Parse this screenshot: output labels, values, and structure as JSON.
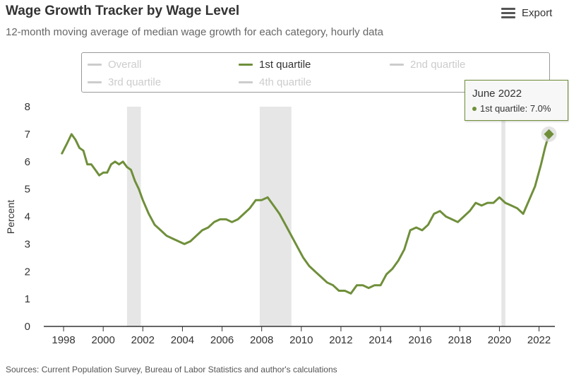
{
  "header": {
    "title": "Wage Growth Tracker by Wage Level",
    "subtitle": "12-month moving average of median wage growth for each category, hourly data"
  },
  "export_button": {
    "label": "Export",
    "icon": "hamburger-menu-icon"
  },
  "legend": {
    "items": [
      {
        "label": "Overall",
        "active": false
      },
      {
        "label": "1st quartile",
        "active": true
      },
      {
        "label": "2nd quartile",
        "active": false
      },
      {
        "label": "3rd quartile",
        "active": false
      },
      {
        "label": "4th quartile",
        "active": false
      }
    ]
  },
  "tooltip": {
    "title": "June 2022",
    "series_label": "1st quartile: 7.0%"
  },
  "source": "Sources: Current Population Survey, Bureau of Labor Statistics and author's calculations",
  "colors": {
    "series": "#6f8f3a",
    "inactive_legend": "#cccccc",
    "recession": "#e6e6e6",
    "axis": "#333333",
    "text": "#333333"
  },
  "chart_data": {
    "type": "line",
    "title": "Wage Growth Tracker by Wage Level",
    "subtitle": "12-month moving average of median wage growth for each category, hourly data",
    "ylabel": "Percent",
    "ylim": [
      0,
      8
    ],
    "yticks": [
      0,
      1,
      2,
      3,
      4,
      5,
      6,
      7,
      8
    ],
    "xlim": [
      1997,
      2022.8
    ],
    "xticks": [
      1998,
      2000,
      2002,
      2004,
      2006,
      2008,
      2010,
      2012,
      2014,
      2016,
      2018,
      2020,
      2022
    ],
    "grid": false,
    "legend_position": "top",
    "recessions": [
      [
        2001.2,
        2001.9
      ],
      [
        2007.9,
        2009.5
      ],
      [
        2020.1,
        2020.3
      ]
    ],
    "series": [
      {
        "name": "1st quartile",
        "x": [
          1997.92,
          1998.2,
          1998.4,
          1998.6,
          1998.8,
          1999.0,
          1999.2,
          1999.4,
          1999.6,
          1999.8,
          2000.0,
          2000.2,
          2000.4,
          2000.6,
          2000.8,
          2001.0,
          2001.2,
          2001.4,
          2001.6,
          2001.8,
          2002.0,
          2002.3,
          2002.6,
          2002.9,
          2003.2,
          2003.5,
          2003.8,
          2004.1,
          2004.4,
          2004.7,
          2005.0,
          2005.3,
          2005.6,
          2005.9,
          2006.2,
          2006.5,
          2006.8,
          2007.1,
          2007.4,
          2007.7,
          2008.0,
          2008.3,
          2008.6,
          2008.9,
          2009.2,
          2009.5,
          2009.8,
          2010.1,
          2010.4,
          2010.7,
          2011.0,
          2011.3,
          2011.6,
          2011.9,
          2012.2,
          2012.5,
          2012.8,
          2013.1,
          2013.4,
          2013.7,
          2014.0,
          2014.3,
          2014.6,
          2014.9,
          2015.2,
          2015.5,
          2015.8,
          2016.1,
          2016.4,
          2016.7,
          2017.0,
          2017.3,
          2017.6,
          2017.9,
          2018.2,
          2018.5,
          2018.8,
          2019.1,
          2019.4,
          2019.7,
          2020.0,
          2020.3,
          2020.6,
          2020.9,
          2021.2,
          2021.5,
          2021.8,
          2022.1,
          2022.3,
          2022.5
        ],
        "values": [
          6.3,
          6.7,
          7.0,
          6.8,
          6.5,
          6.4,
          5.9,
          5.9,
          5.7,
          5.5,
          5.6,
          5.6,
          5.9,
          6.0,
          5.9,
          6.0,
          5.8,
          5.7,
          5.3,
          5.0,
          4.6,
          4.1,
          3.7,
          3.5,
          3.3,
          3.2,
          3.1,
          3.0,
          3.1,
          3.3,
          3.5,
          3.6,
          3.8,
          3.9,
          3.9,
          3.8,
          3.9,
          4.1,
          4.3,
          4.6,
          4.6,
          4.7,
          4.4,
          4.1,
          3.7,
          3.3,
          2.9,
          2.5,
          2.2,
          2.0,
          1.8,
          1.6,
          1.5,
          1.3,
          1.3,
          1.2,
          1.5,
          1.5,
          1.4,
          1.5,
          1.5,
          1.9,
          2.1,
          2.4,
          2.8,
          3.5,
          3.6,
          3.5,
          3.7,
          4.1,
          4.2,
          4.0,
          3.9,
          3.8,
          4.0,
          4.2,
          4.5,
          4.4,
          4.5,
          4.5,
          4.7,
          4.5,
          4.4,
          4.3,
          4.1,
          4.6,
          5.1,
          5.9,
          6.5,
          7.0
        ]
      }
    ],
    "highlight": {
      "x": 2022.5,
      "y": 7.0,
      "label": "June 2022"
    }
  }
}
